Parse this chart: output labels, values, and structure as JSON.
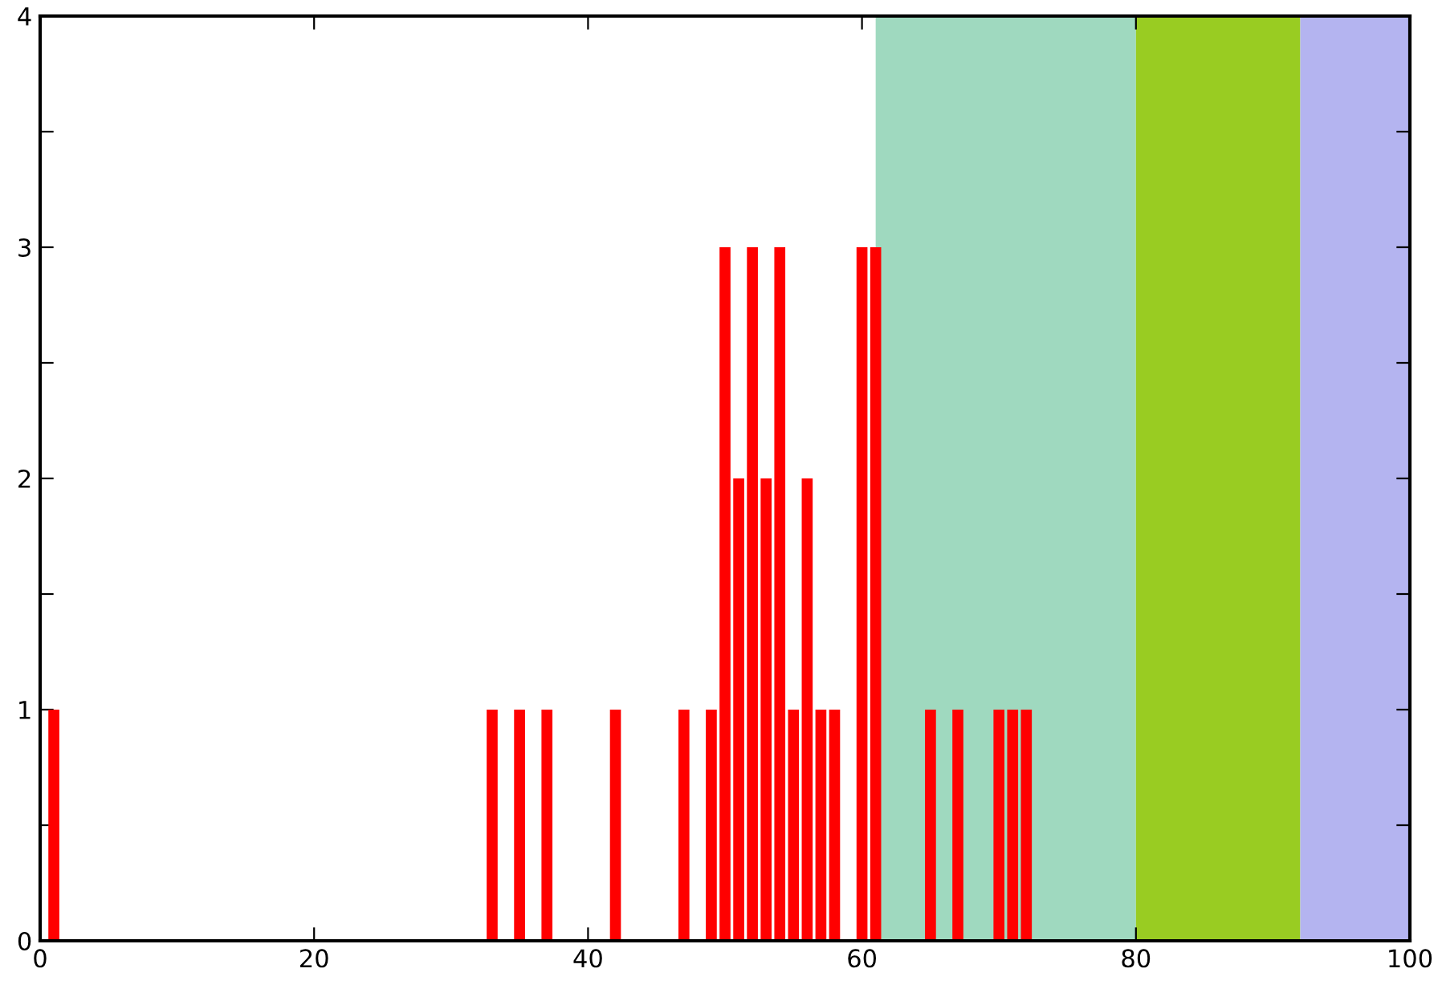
{
  "chart_data": {
    "type": "bar",
    "x": [
      1,
      33,
      35,
      37,
      42,
      47,
      49,
      50,
      51,
      52,
      53,
      54,
      55,
      56,
      57,
      58,
      60,
      61,
      65,
      67,
      70,
      71,
      72
    ],
    "series": [
      {
        "color": "#ff0000",
        "values": [
          1,
          1,
          1,
          1,
          1,
          1,
          1,
          3,
          2,
          3,
          2,
          3,
          1,
          2,
          1,
          1,
          3,
          3,
          1,
          1,
          1,
          1,
          1
        ]
      }
    ],
    "xlim": [
      0,
      100
    ],
    "xticks": [
      0,
      20,
      40,
      60,
      80,
      100
    ],
    "ylim": [
      0,
      4
    ],
    "yticks": [
      0,
      {
        "value": 0.5,
        "label": null
      },
      1,
      {
        "value": 1.5,
        "label": null
      },
      2,
      {
        "value": 2.5,
        "label": null
      },
      3,
      {
        "value": 3.5,
        "label": null
      },
      4
    ],
    "bands": [
      {
        "axis": "x",
        "from": 61,
        "to": 80,
        "color": "#9fd9bf"
      },
      {
        "axis": "x",
        "from": 80,
        "to": 92,
        "color": "#99cc22"
      },
      {
        "axis": "x",
        "from": 92,
        "to": 100,
        "color": "#b4b4f0"
      }
    ],
    "grid": false,
    "legend": false
  }
}
